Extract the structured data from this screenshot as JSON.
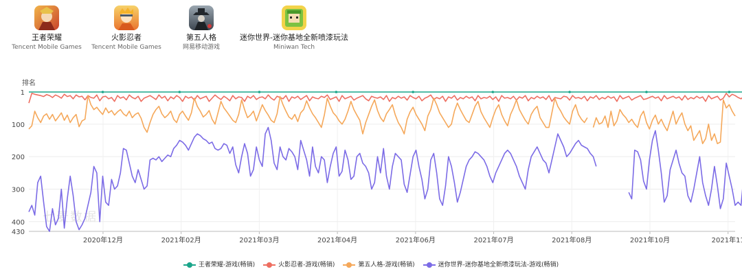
{
  "apps": [
    {
      "name": "王者荣耀",
      "publisher": "Tencent Mobile Games",
      "icon": "hero-warrior-icon",
      "colors": [
        "#c8432b",
        "#f2b54a"
      ]
    },
    {
      "name": "火影忍者",
      "publisher": "Tencent Mobile Games",
      "icon": "ninja-icon",
      "colors": [
        "#e9742f",
        "#f7d26a"
      ]
    },
    {
      "name": "第五人格",
      "publisher": "网易移动游戏",
      "icon": "gothic-figure-icon",
      "colors": [
        "#3d4650",
        "#9aa6b0"
      ]
    },
    {
      "name": "迷你世界-迷你基地全新喷漆玩法",
      "publisher": "Miniwan Tech",
      "icon": "block-character-icon",
      "colors": [
        "#7cc242",
        "#f3d34a"
      ]
    }
  ],
  "watermark": "七麦数据",
  "chart_data": {
    "type": "line",
    "ylabel": "排名",
    "y_reversed": true,
    "ylim": [
      1,
      430
    ],
    "y_ticks": [
      1,
      100,
      200,
      300,
      400,
      430
    ],
    "x_ticks": [
      "2020年12月",
      "2021年02月",
      "2021年03月",
      "2021年04月",
      "2021年06月",
      "2021年07月",
      "2021年08月",
      "2021年10月",
      "2021年11"
    ],
    "n_points": 240,
    "grid": true,
    "legend_position": "bottom",
    "series": [
      {
        "name": "王者荣耀-游戏(畅销)",
        "color": "#1aa58a",
        "values": [
          1,
          1,
          1,
          1,
          1,
          1,
          1,
          1,
          1,
          1,
          1,
          1,
          1,
          1,
          1,
          1,
          1,
          1,
          1,
          1,
          1,
          1,
          1,
          1,
          1,
          1,
          1,
          1,
          1,
          1,
          1,
          1,
          1,
          1,
          1,
          1,
          1,
          1,
          1,
          1,
          1,
          1,
          1,
          1,
          1,
          1,
          1,
          1,
          1,
          1,
          1,
          1,
          1,
          1,
          1,
          1,
          1,
          1,
          1,
          1,
          1,
          1,
          1,
          1,
          1,
          1,
          1,
          1,
          1,
          1,
          1,
          1,
          1,
          1,
          1,
          1,
          1,
          1,
          1,
          1,
          1,
          1,
          1,
          1,
          1,
          1,
          1,
          1,
          1,
          1,
          1,
          1,
          1,
          1,
          1,
          1,
          1,
          1,
          1,
          1,
          1,
          1,
          1,
          1,
          1,
          1,
          1,
          1,
          1,
          1,
          1,
          1,
          1,
          1,
          1,
          1,
          1,
          1,
          1,
          1,
          1,
          1,
          1,
          1,
          1,
          1,
          1,
          1,
          1,
          1,
          1,
          1,
          1,
          1,
          1,
          1,
          1,
          1,
          1,
          1,
          1,
          1,
          1,
          1,
          1,
          1,
          1,
          1,
          1,
          1,
          1,
          1,
          1,
          1,
          1,
          1,
          1,
          1,
          1,
          1,
          1,
          1,
          1,
          1,
          1,
          1,
          1,
          1,
          1,
          1,
          1,
          1,
          1,
          1,
          1,
          1,
          1,
          1,
          1,
          1,
          1,
          1,
          1,
          1,
          1,
          1,
          1,
          1,
          1,
          1,
          1,
          1,
          1,
          1,
          1,
          1,
          1,
          1,
          1,
          1,
          1,
          1,
          1,
          1,
          1,
          1,
          1,
          1,
          1,
          1,
          1,
          1,
          1,
          1,
          1,
          1,
          1,
          1,
          1,
          1,
          1,
          1,
          1,
          1,
          1,
          1,
          1,
          1,
          1,
          1,
          1,
          1,
          1,
          1,
          1,
          1,
          1,
          1,
          1,
          1,
          1,
          1,
          1,
          1,
          1,
          1,
          1,
          1,
          1,
          1,
          1
        ]
      },
      {
        "name": "火影忍者-游戏(畅销)",
        "color": "#ee6e60",
        "values": [
          35,
          5,
          8,
          10,
          12,
          15,
          9,
          12,
          18,
          10,
          14,
          20,
          8,
          15,
          12,
          22,
          10,
          16,
          14,
          25,
          12,
          18,
          20,
          10,
          28,
          16,
          14,
          22,
          18,
          30,
          12,
          20,
          16,
          25,
          10,
          18,
          22,
          14,
          30,
          20,
          16,
          12,
          18,
          24,
          10,
          20,
          14,
          28,
          16,
          22,
          12,
          18,
          30,
          14,
          20,
          16,
          26,
          12,
          22,
          18,
          14,
          30,
          20,
          10,
          18,
          24,
          14,
          20,
          28,
          12,
          22,
          16,
          18,
          30,
          14,
          20,
          12,
          24,
          18,
          16,
          22,
          10,
          20,
          26,
          14,
          18,
          22,
          12,
          30,
          16,
          20,
          14,
          24,
          18,
          12,
          28,
          16,
          20,
          22,
          14,
          18,
          10,
          24,
          20,
          16,
          30,
          12,
          22,
          18,
          14,
          26,
          20,
          16,
          12,
          22,
          28,
          14,
          18,
          20,
          16,
          24,
          12,
          30,
          18,
          22,
          14,
          20,
          16,
          26,
          12,
          18,
          22,
          14,
          28,
          20,
          16,
          10,
          24,
          18,
          22,
          14,
          30,
          16,
          20,
          12,
          26,
          18,
          22,
          14,
          20,
          16,
          28,
          12,
          22,
          18,
          20,
          14,
          24,
          16,
          30,
          12,
          20,
          18,
          22,
          14,
          26,
          16,
          20,
          12,
          28,
          18,
          22,
          14,
          20,
          16,
          24,
          12,
          30,
          18,
          20,
          22,
          14,
          16,
          26,
          12,
          20,
          18,
          22,
          14,
          28,
          16,
          20,
          12,
          24,
          18,
          22,
          14,
          20,
          16,
          30,
          12,
          22,
          18,
          14,
          26,
          20,
          16,
          12,
          24,
          22,
          18,
          14,
          20,
          16,
          28,
          12,
          22,
          18,
          14,
          20,
          16,
          26,
          12,
          24,
          18,
          22,
          14,
          20,
          16,
          30,
          12,
          22,
          18,
          14,
          26,
          20,
          5,
          16,
          8,
          12,
          18,
          22,
          14,
          20,
          16,
          28,
          22,
          14
        ]
      },
      {
        "name": "第五人格-游戏(畅销)",
        "color": "#f5a85a",
        "values": [
          115,
          105,
          60,
          80,
          95,
          75,
          68,
          85,
          70,
          90,
          78,
          65,
          88,
          72,
          95,
          80,
          70,
          108,
          90,
          85,
          12,
          40,
          55,
          48,
          60,
          70,
          50,
          65,
          58,
          72,
          62,
          55,
          68,
          75,
          60,
          80,
          70,
          65,
          82,
          110,
          125,
          95,
          70,
          55,
          45,
          68,
          80,
          72,
          60,
          85,
          95,
          70,
          60,
          75,
          88,
          65,
          20,
          45,
          60,
          78,
          70,
          58,
          85,
          100,
          65,
          30,
          50,
          62,
          75,
          88,
          95,
          70,
          25,
          55,
          80,
          72,
          60,
          90,
          65,
          40,
          58,
          72,
          88,
          95,
          68,
          15,
          40,
          60,
          78,
          85,
          70,
          92,
          65,
          55,
          28,
          50,
          68,
          80,
          95,
          110,
          72,
          20,
          45,
          65,
          75,
          90,
          100,
          85,
          60,
          30,
          55,
          72,
          88,
          130,
          95,
          70,
          45,
          25,
          58,
          80,
          92,
          68,
          55,
          40,
          72,
          95,
          110,
          130,
          85,
          62,
          48,
          70,
          85,
          100,
          120,
          75,
          55,
          20,
          40,
          65,
          80,
          95,
          110,
          100,
          60,
          35,
          55,
          72,
          88,
          95,
          70,
          45,
          30,
          62,
          80,
          95,
          110,
          80,
          55,
          40,
          70,
          90,
          105,
          70,
          50,
          25,
          55,
          72,
          88,
          100,
          70,
          55,
          45,
          80,
          95,
          110,
          110,
          65,
          20,
          45,
          60,
          78,
          90,
          100,
          60,
          40,
          70,
          85,
          95,
          80,
          null,
          110,
          80,
          100,
          95,
          75,
          110,
          60,
          105,
          90,
          55,
          70,
          80,
          95,
          85,
          100,
          110,
          75,
          60,
          95,
          115,
          88,
          72,
          100,
          85,
          105,
          120,
          90,
          60,
          100,
          80,
          65,
          100,
          120,
          105,
          150,
          135,
          120,
          160,
          145,
          100,
          150,
          130,
          160,
          155,
          25,
          50,
          40,
          60,
          75
        ]
      },
      {
        "name": "迷你世界-迷你基地全新喷漆玩法-游戏(畅销)",
        "color": "#7b6be6",
        "values": [
          370,
          350,
          380,
          280,
          260,
          340,
          415,
          430,
          360,
          410,
          390,
          300,
          420,
          330,
          260,
          320,
          400,
          425,
          410,
          390,
          350,
          310,
          230,
          250,
          400,
          260,
          340,
          350,
          270,
          300,
          290,
          250,
          175,
          180,
          220,
          260,
          280,
          240,
          270,
          300,
          290,
          210,
          205,
          210,
          200,
          215,
          205,
          195,
          200,
          175,
          165,
          150,
          155,
          165,
          180,
          160,
          140,
          130,
          135,
          145,
          150,
          160,
          155,
          175,
          180,
          175,
          160,
          165,
          190,
          170,
          225,
          250,
          200,
          160,
          190,
          260,
          240,
          170,
          210,
          230,
          130,
          110,
          150,
          220,
          240,
          170,
          200,
          210,
          175,
          185,
          200,
          240,
          150,
          180,
          210,
          260,
          170,
          230,
          250,
          200,
          210,
          280,
          230,
          190,
          170,
          260,
          245,
          180,
          210,
          270,
          260,
          200,
          190,
          220,
          230,
          250,
          300,
          280,
          200,
          250,
          175,
          260,
          300,
          230,
          190,
          200,
          210,
          285,
          310,
          255,
          200,
          180,
          230,
          270,
          330,
          300,
          210,
          190,
          250,
          330,
          350,
          290,
          200,
          230,
          280,
          340,
          310,
          270,
          230,
          210,
          200,
          185,
          190,
          200,
          210,
          230,
          260,
          280,
          250,
          230,
          210,
          190,
          180,
          190,
          210,
          230,
          260,
          280,
          300,
          240,
          200,
          185,
          170,
          190,
          210,
          220,
          250,
          210,
          170,
          130,
          150,
          170,
          200,
          190,
          175,
          160,
          150,
          165,
          170,
          175,
          190,
          200,
          230,
          null,
          null,
          null,
          null,
          null,
          null,
          null,
          null,
          null,
          null,
          310,
          330,
          180,
          185,
          210,
          275,
          300,
          210,
          150,
          120,
          180,
          250,
          340,
          320,
          240,
          210,
          180,
          220,
          250,
          260,
          320,
          340,
          300,
          250,
          200,
          280,
          320,
          350,
          300,
          230,
          290,
          360,
          330,
          220,
          260,
          300,
          350,
          340,
          350,
          250,
          300,
          330,
          250,
          340,
          320
        ]
      }
    ]
  }
}
